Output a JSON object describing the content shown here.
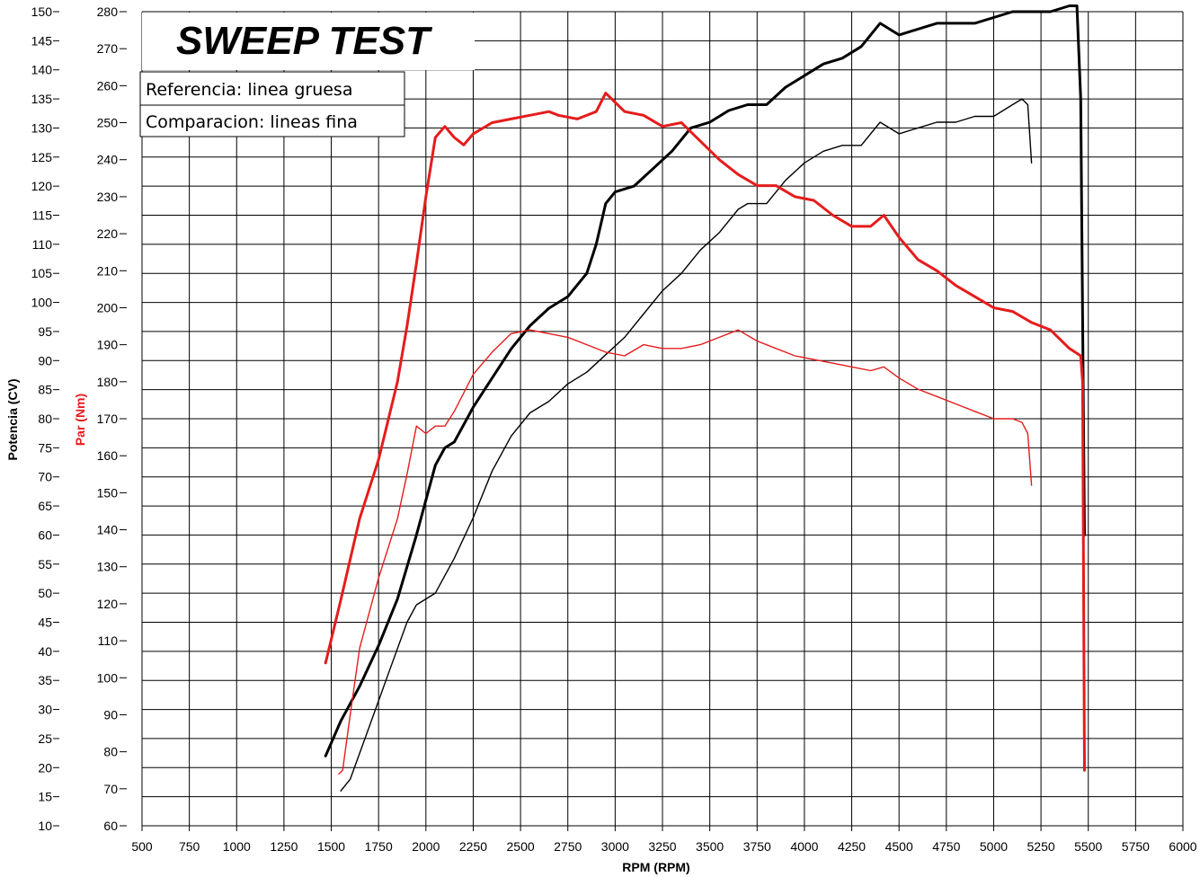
{
  "chart_data": {
    "type": "line",
    "title": "SWEEP TEST",
    "legend": [
      "Referencia: linea gruesa",
      "Comparacion: lineas fina"
    ],
    "legend_placement": "top-left",
    "grid": true,
    "xlabel": "RPM (RPM)",
    "ylabel_left": "Potencia (CV)",
    "ylabel_right": "Par (Nm)",
    "xlim": [
      500,
      6000
    ],
    "x_ticks": [
      500,
      750,
      1000,
      1250,
      1500,
      1750,
      2000,
      2250,
      2500,
      2750,
      3000,
      3250,
      3500,
      3750,
      4000,
      4250,
      4500,
      4750,
      5000,
      5250,
      5500,
      5750,
      6000
    ],
    "power_axis": {
      "range": [
        10,
        150
      ],
      "ticks": [
        10,
        15,
        20,
        25,
        30,
        35,
        40,
        45,
        50,
        55,
        60,
        65,
        70,
        75,
        80,
        85,
        90,
        95,
        100,
        105,
        110,
        115,
        120,
        125,
        130,
        135,
        140,
        145,
        150
      ]
    },
    "torque_axis": {
      "range": [
        60,
        280
      ],
      "ticks": [
        60,
        70,
        80,
        90,
        100,
        110,
        120,
        130,
        140,
        150,
        160,
        170,
        180,
        190,
        200,
        210,
        220,
        230,
        240,
        250,
        260,
        270,
        280
      ]
    },
    "colors": {
      "power": "#000000",
      "torque": "#e51c1c",
      "grid": "#000000"
    },
    "series": [
      {
        "axis": "power",
        "line": "thick",
        "color": "#000000",
        "points": [
          [
            1470,
            22
          ],
          [
            1550,
            28
          ],
          [
            1650,
            34
          ],
          [
            1750,
            41
          ],
          [
            1850,
            49
          ],
          [
            1950,
            60
          ],
          [
            2000,
            66
          ],
          [
            2050,
            72
          ],
          [
            2100,
            75
          ],
          [
            2150,
            76
          ],
          [
            2250,
            82
          ],
          [
            2350,
            87
          ],
          [
            2450,
            92
          ],
          [
            2550,
            96
          ],
          [
            2650,
            99
          ],
          [
            2750,
            101
          ],
          [
            2850,
            105
          ],
          [
            2900,
            110
          ],
          [
            2950,
            117
          ],
          [
            3000,
            119
          ],
          [
            3100,
            120
          ],
          [
            3200,
            123
          ],
          [
            3300,
            126
          ],
          [
            3400,
            130
          ],
          [
            3500,
            131
          ],
          [
            3600,
            133
          ],
          [
            3700,
            134
          ],
          [
            3800,
            134
          ],
          [
            3900,
            137
          ],
          [
            4000,
            139
          ],
          [
            4100,
            141
          ],
          [
            4200,
            142
          ],
          [
            4300,
            144
          ],
          [
            4400,
            148
          ],
          [
            4500,
            146
          ],
          [
            4600,
            147
          ],
          [
            4700,
            148
          ],
          [
            4800,
            148
          ],
          [
            4900,
            148
          ],
          [
            5000,
            149
          ],
          [
            5100,
            150
          ],
          [
            5200,
            150
          ],
          [
            5300,
            150
          ],
          [
            5400,
            151
          ],
          [
            5440,
            151
          ],
          [
            5460,
            135
          ],
          [
            5480,
            60
          ]
        ]
      },
      {
        "axis": "power",
        "line": "thin",
        "color": "#000000",
        "points": [
          [
            1550,
            16
          ],
          [
            1600,
            18
          ],
          [
            1700,
            27
          ],
          [
            1800,
            36
          ],
          [
            1900,
            45
          ],
          [
            1950,
            48
          ],
          [
            2050,
            50
          ],
          [
            2150,
            56
          ],
          [
            2250,
            63
          ],
          [
            2350,
            71
          ],
          [
            2450,
            77
          ],
          [
            2550,
            81
          ],
          [
            2650,
            83
          ],
          [
            2750,
            86
          ],
          [
            2850,
            88
          ],
          [
            2950,
            91
          ],
          [
            3050,
            94
          ],
          [
            3150,
            98
          ],
          [
            3250,
            102
          ],
          [
            3350,
            105
          ],
          [
            3450,
            109
          ],
          [
            3550,
            112
          ],
          [
            3650,
            116
          ],
          [
            3700,
            117
          ],
          [
            3800,
            117
          ],
          [
            3900,
            121
          ],
          [
            4000,
            124
          ],
          [
            4100,
            126
          ],
          [
            4200,
            127
          ],
          [
            4300,
            127
          ],
          [
            4400,
            131
          ],
          [
            4500,
            129
          ],
          [
            4600,
            130
          ],
          [
            4700,
            131
          ],
          [
            4800,
            131
          ],
          [
            4900,
            132
          ],
          [
            5000,
            132
          ],
          [
            5100,
            134
          ],
          [
            5150,
            135
          ],
          [
            5180,
            134
          ],
          [
            5200,
            124
          ]
        ]
      },
      {
        "axis": "torque",
        "line": "thick",
        "color": "#e51c1c",
        "points": [
          [
            1470,
            104
          ],
          [
            1550,
            121
          ],
          [
            1650,
            143
          ],
          [
            1750,
            159
          ],
          [
            1850,
            180
          ],
          [
            1900,
            195
          ],
          [
            1950,
            212
          ],
          [
            2000,
            230
          ],
          [
            2050,
            246
          ],
          [
            2100,
            249
          ],
          [
            2150,
            246
          ],
          [
            2200,
            244
          ],
          [
            2250,
            247
          ],
          [
            2350,
            250
          ],
          [
            2450,
            251
          ],
          [
            2550,
            252
          ],
          [
            2650,
            253
          ],
          [
            2700,
            252
          ],
          [
            2800,
            251
          ],
          [
            2900,
            253
          ],
          [
            2950,
            258
          ],
          [
            3050,
            253
          ],
          [
            3150,
            252
          ],
          [
            3250,
            249
          ],
          [
            3350,
            250
          ],
          [
            3450,
            245
          ],
          [
            3550,
            240
          ],
          [
            3650,
            236
          ],
          [
            3750,
            233
          ],
          [
            3850,
            233
          ],
          [
            3950,
            230
          ],
          [
            4050,
            229
          ],
          [
            4150,
            225
          ],
          [
            4250,
            222
          ],
          [
            4350,
            222
          ],
          [
            4420,
            225
          ],
          [
            4500,
            219
          ],
          [
            4600,
            213
          ],
          [
            4700,
            210
          ],
          [
            4800,
            206
          ],
          [
            4900,
            203
          ],
          [
            5000,
            200
          ],
          [
            5100,
            199
          ],
          [
            5200,
            196
          ],
          [
            5300,
            194
          ],
          [
            5400,
            189
          ],
          [
            5460,
            187
          ],
          [
            5470,
            180
          ],
          [
            5480,
            75
          ]
        ]
      },
      {
        "axis": "torque",
        "line": "thin",
        "color": "#e51c1c",
        "points": [
          [
            1540,
            74
          ],
          [
            1560,
            75
          ],
          [
            1600,
            90
          ],
          [
            1650,
            108
          ],
          [
            1750,
            127
          ],
          [
            1850,
            143
          ],
          [
            1900,
            155
          ],
          [
            1950,
            168
          ],
          [
            2000,
            166
          ],
          [
            2050,
            168
          ],
          [
            2100,
            168
          ],
          [
            2150,
            172
          ],
          [
            2250,
            182
          ],
          [
            2350,
            188
          ],
          [
            2450,
            193
          ],
          [
            2550,
            194
          ],
          [
            2650,
            193
          ],
          [
            2750,
            192
          ],
          [
            2850,
            190
          ],
          [
            2950,
            188
          ],
          [
            3050,
            187
          ],
          [
            3150,
            190
          ],
          [
            3250,
            189
          ],
          [
            3350,
            189
          ],
          [
            3450,
            190
          ],
          [
            3550,
            192
          ],
          [
            3650,
            194
          ],
          [
            3750,
            191
          ],
          [
            3850,
            189
          ],
          [
            3950,
            187
          ],
          [
            4050,
            186
          ],
          [
            4150,
            185
          ],
          [
            4250,
            184
          ],
          [
            4350,
            183
          ],
          [
            4420,
            184
          ],
          [
            4500,
            181
          ],
          [
            4600,
            178
          ],
          [
            4700,
            176
          ],
          [
            4800,
            174
          ],
          [
            4900,
            172
          ],
          [
            5000,
            170
          ],
          [
            5100,
            170
          ],
          [
            5150,
            169
          ],
          [
            5180,
            166
          ],
          [
            5200,
            152
          ]
        ]
      }
    ]
  }
}
